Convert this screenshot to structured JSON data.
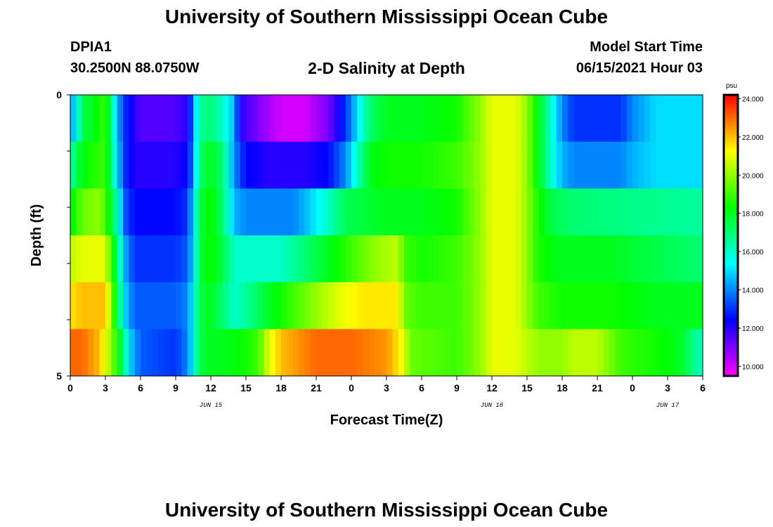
{
  "header": {
    "title_top": "University of Southern Mississippi Ocean Cube",
    "title_bottom": "University of Southern Mississippi Ocean Cube",
    "station_id": "DPIA1",
    "coords": "30.2500N  88.0750W",
    "chart_title": "2-D Salinity at Depth",
    "model_start_label": "Model Start Time",
    "model_start_value": "06/15/2021 Hour 03"
  },
  "chart_data": {
    "type": "heatmap",
    "title": "2-D Salinity at Depth",
    "xlabel": "Forecast Time(Z)",
    "ylabel": "Depth (ft)",
    "x_hours": [
      0,
      3,
      6,
      9,
      12,
      15,
      18,
      21,
      24,
      27,
      30,
      33,
      36,
      39,
      42,
      45,
      48,
      51,
      54
    ],
    "x_tick_labels": [
      "0",
      "3",
      "6",
      "9",
      "12",
      "15",
      "18",
      "21",
      "0",
      "3",
      "6",
      "9",
      "12",
      "15",
      "18",
      "21",
      "0",
      "3",
      "6"
    ],
    "date_labels": [
      {
        "hour": 12,
        "text": "JUN 15"
      },
      {
        "hour": 36,
        "text": "JUN 16"
      },
      {
        "hour": 51,
        "text": "JUN 17"
      }
    ],
    "xlim": [
      0,
      54
    ],
    "ylim": [
      0,
      5
    ],
    "y_tick_labels": [
      "0",
      "5"
    ],
    "y_ticks": [
      0,
      1,
      2,
      3,
      4,
      5
    ],
    "depth_layers": [
      0.5,
      1.5,
      2.5,
      3.5,
      4.5
    ],
    "colorbar": {
      "unit": "psu",
      "min": 9.5,
      "max": 24.2,
      "tick_values": [
        10,
        12,
        14,
        16,
        18,
        20,
        22,
        24
      ],
      "tick_labels": [
        "10.000",
        "12.000",
        "14.000",
        "16.000",
        "18.000",
        "20.000",
        "22.000",
        "24.000"
      ]
    },
    "series": [
      {
        "name": "layer 1",
        "keys": [
          [
            0,
            14.5
          ],
          [
            0.5,
            15
          ],
          [
            1,
            17.5
          ],
          [
            2,
            18
          ],
          [
            3,
            19
          ],
          [
            3.5,
            17
          ],
          [
            4,
            14.5
          ],
          [
            4.6,
            13
          ],
          [
            5.5,
            12
          ],
          [
            6,
            11.5
          ],
          [
            9,
            11.5
          ],
          [
            10,
            12
          ],
          [
            10.5,
            14
          ],
          [
            11,
            16.5
          ],
          [
            12,
            17
          ],
          [
            13,
            16
          ],
          [
            14,
            14.5
          ],
          [
            14.5,
            12
          ],
          [
            16,
            11
          ],
          [
            18,
            10
          ],
          [
            20,
            10
          ],
          [
            22,
            11
          ],
          [
            23.5,
            13
          ],
          [
            24.5,
            15
          ],
          [
            25.5,
            17
          ],
          [
            27,
            18
          ],
          [
            30,
            18
          ],
          [
            33,
            18.5
          ],
          [
            35,
            20
          ],
          [
            36,
            21
          ],
          [
            38,
            21
          ],
          [
            39,
            20
          ],
          [
            40,
            18
          ],
          [
            41,
            16
          ],
          [
            42,
            14
          ],
          [
            43,
            13
          ],
          [
            47,
            13
          ],
          [
            48,
            14
          ],
          [
            50,
            15
          ],
          [
            54,
            15
          ]
        ]
      },
      {
        "name": "layer 2",
        "keys": [
          [
            0,
            16
          ],
          [
            0.5,
            17.5
          ],
          [
            1.5,
            18.5
          ],
          [
            3,
            19
          ],
          [
            3.5,
            17
          ],
          [
            4,
            15
          ],
          [
            4.6,
            13
          ],
          [
            5.5,
            12
          ],
          [
            9,
            12
          ],
          [
            10,
            12.5
          ],
          [
            10.5,
            14
          ],
          [
            11,
            17
          ],
          [
            12,
            18
          ],
          [
            13,
            17
          ],
          [
            14,
            14
          ],
          [
            15,
            12.5
          ],
          [
            17,
            12
          ],
          [
            20,
            12
          ],
          [
            22,
            12.5
          ],
          [
            23.5,
            14
          ],
          [
            24.5,
            16
          ],
          [
            25.5,
            18
          ],
          [
            27,
            18.5
          ],
          [
            30,
            18.5
          ],
          [
            33,
            19
          ],
          [
            35,
            20
          ],
          [
            36,
            21
          ],
          [
            38,
            21
          ],
          [
            39,
            20
          ],
          [
            40,
            18
          ],
          [
            41,
            16
          ],
          [
            42,
            14.5
          ],
          [
            43,
            14
          ],
          [
            47,
            14
          ],
          [
            48,
            14.5
          ],
          [
            50,
            15
          ],
          [
            54,
            15
          ]
        ]
      },
      {
        "name": "layer 3",
        "keys": [
          [
            0,
            18
          ],
          [
            1,
            19.5
          ],
          [
            2.5,
            20
          ],
          [
            3.5,
            18
          ],
          [
            4,
            16
          ],
          [
            4.6,
            13.5
          ],
          [
            5.5,
            12.5
          ],
          [
            9,
            12.5
          ],
          [
            10,
            13
          ],
          [
            10.5,
            15
          ],
          [
            11,
            17.5
          ],
          [
            12,
            18.5
          ],
          [
            13,
            17
          ],
          [
            14,
            14.5
          ],
          [
            15,
            14
          ],
          [
            19,
            14
          ],
          [
            20,
            14.5
          ],
          [
            22,
            16
          ],
          [
            23,
            17
          ],
          [
            24,
            17.5
          ],
          [
            27,
            18
          ],
          [
            30,
            18
          ],
          [
            33,
            18.5
          ],
          [
            35,
            20
          ],
          [
            36,
            21
          ],
          [
            38,
            21
          ],
          [
            39,
            20
          ],
          [
            40,
            18.5
          ],
          [
            41,
            17.5
          ],
          [
            43,
            17
          ],
          [
            54,
            16.5
          ]
        ]
      },
      {
        "name": "layer 4",
        "keys": [
          [
            0,
            20.5
          ],
          [
            1,
            21
          ],
          [
            3,
            21
          ],
          [
            3.5,
            19
          ],
          [
            4,
            17
          ],
          [
            4.6,
            14.5
          ],
          [
            5.5,
            13
          ],
          [
            9,
            13
          ],
          [
            10,
            13.5
          ],
          [
            10.5,
            15
          ],
          [
            11,
            17.5
          ],
          [
            12,
            18.5
          ],
          [
            13,
            17.5
          ],
          [
            14,
            16
          ],
          [
            18,
            16
          ],
          [
            20,
            17
          ],
          [
            22,
            18
          ],
          [
            24,
            19
          ],
          [
            26,
            20
          ],
          [
            28,
            20.5
          ],
          [
            28.5,
            19
          ],
          [
            30,
            18.5
          ],
          [
            33,
            19
          ],
          [
            35,
            20
          ],
          [
            36,
            21
          ],
          [
            38,
            21
          ],
          [
            39,
            20
          ],
          [
            40,
            18.5
          ],
          [
            42,
            18
          ],
          [
            46,
            18
          ],
          [
            50,
            17.5
          ],
          [
            54,
            17
          ]
        ]
      },
      {
        "name": "layer 5",
        "keys": [
          [
            0,
            21.5
          ],
          [
            1,
            22
          ],
          [
            3,
            22
          ],
          [
            3.5,
            20
          ],
          [
            4,
            17.5
          ],
          [
            4.6,
            15
          ],
          [
            5.5,
            13.5
          ],
          [
            9,
            13.5
          ],
          [
            10,
            14
          ],
          [
            10.5,
            15.5
          ],
          [
            11,
            17.5
          ],
          [
            12,
            18
          ],
          [
            13,
            17
          ],
          [
            14,
            16
          ],
          [
            15,
            16.5
          ],
          [
            17,
            18
          ],
          [
            19,
            19
          ],
          [
            21,
            20
          ],
          [
            23,
            21
          ],
          [
            25,
            21.5
          ],
          [
            28,
            21.5
          ],
          [
            28.5,
            19.5
          ],
          [
            30,
            19
          ],
          [
            33,
            19
          ],
          [
            35,
            20
          ],
          [
            36,
            21
          ],
          [
            38,
            21
          ],
          [
            39,
            20
          ],
          [
            40,
            19
          ],
          [
            42,
            18.5
          ],
          [
            46,
            18.5
          ],
          [
            50,
            18
          ],
          [
            54,
            18
          ]
        ]
      },
      {
        "name": "layer 6",
        "keys": [
          [
            0,
            23
          ],
          [
            1,
            23
          ],
          [
            2.5,
            22
          ],
          [
            3.5,
            20
          ],
          [
            4.5,
            17
          ],
          [
            5,
            15
          ],
          [
            6,
            13.5
          ],
          [
            9,
            13
          ],
          [
            10,
            14
          ],
          [
            10.5,
            15.5
          ],
          [
            11,
            17.5
          ],
          [
            12,
            18
          ],
          [
            13,
            18
          ],
          [
            15,
            18.5
          ],
          [
            16,
            19
          ],
          [
            17,
            21
          ],
          [
            18,
            22
          ],
          [
            21,
            23
          ],
          [
            24,
            23
          ],
          [
            27,
            22.5
          ],
          [
            28.5,
            21
          ],
          [
            29,
            19.5
          ],
          [
            33,
            19
          ],
          [
            35,
            20
          ],
          [
            36,
            21
          ],
          [
            38,
            21
          ],
          [
            40,
            20
          ],
          [
            42,
            20
          ],
          [
            43,
            20.5
          ],
          [
            45,
            20.5
          ],
          [
            47,
            19
          ],
          [
            50,
            18.5
          ],
          [
            52,
            18
          ],
          [
            54,
            16
          ]
        ]
      }
    ]
  }
}
